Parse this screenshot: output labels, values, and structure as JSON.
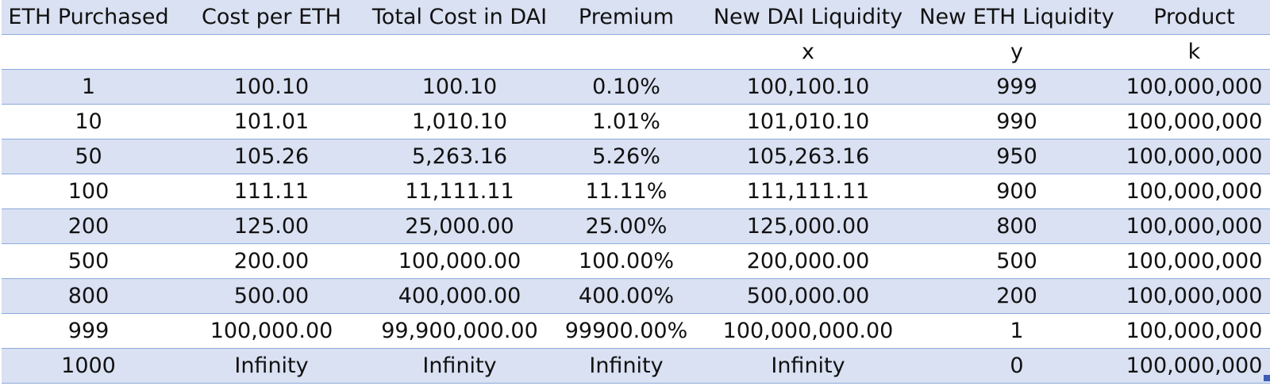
{
  "table": {
    "headers": [
      "ETH Purchased",
      "Cost per ETH",
      "Total Cost in DAI",
      "Premium",
      "New DAI Liquidity",
      "New ETH Liquidity",
      "Product"
    ],
    "subheaders": [
      "",
      "",
      "",
      "",
      "x",
      "y",
      "k"
    ],
    "rows": [
      [
        "1",
        "100.10",
        "100.10",
        "0.10%",
        "100,100.10",
        "999",
        "100,000,000"
      ],
      [
        "10",
        "101.01",
        "1,010.10",
        "1.01%",
        "101,010.10",
        "990",
        "100,000,000"
      ],
      [
        "50",
        "105.26",
        "5,263.16",
        "5.26%",
        "105,263.16",
        "950",
        "100,000,000"
      ],
      [
        "100",
        "111.11",
        "11,111.11",
        "11.11%",
        "111,111.11",
        "900",
        "100,000,000"
      ],
      [
        "200",
        "125.00",
        "25,000.00",
        "25.00%",
        "125,000.00",
        "800",
        "100,000,000"
      ],
      [
        "500",
        "200.00",
        "100,000.00",
        "100.00%",
        "200,000.00",
        "500",
        "100,000,000"
      ],
      [
        "800",
        "500.00",
        "400,000.00",
        "400.00%",
        "500,000.00",
        "200",
        "100,000,000"
      ],
      [
        "999",
        "100,000.00",
        "99,900,000.00",
        "99900.00%",
        "100,000,000.00",
        "1",
        "100,000,000"
      ],
      [
        "1000",
        "Infinity",
        "Infinity",
        "Infinity",
        "Infinity",
        "0",
        "100,000,000"
      ]
    ]
  },
  "colors": {
    "band": "#d9e1f2",
    "plain": "#ffffff",
    "border": "#8eaadb",
    "text": "#111111"
  }
}
